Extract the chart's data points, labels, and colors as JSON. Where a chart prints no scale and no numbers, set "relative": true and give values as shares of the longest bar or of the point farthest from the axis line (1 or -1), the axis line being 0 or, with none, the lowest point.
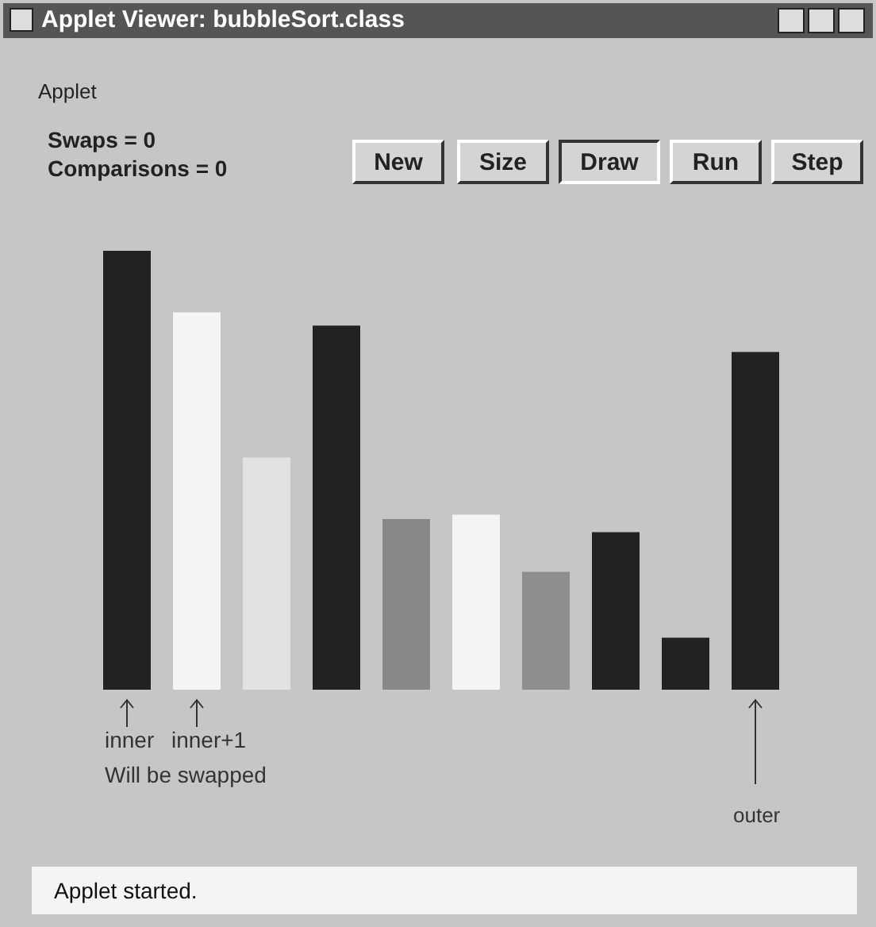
{
  "chart_data": {
    "type": "bar",
    "title": "Applet Viewer: bubbleSort.class",
    "relative": true,
    "categories": [
      null,
      null,
      null,
      null,
      null,
      null,
      null,
      null,
      null,
      null
    ],
    "values": [
      1,
      0.86,
      0.53,
      0.83,
      0.39,
      0.4,
      0.27,
      0.36,
      0.12,
      0.77
    ],
    "colors": [
      "#222222",
      "#f4f4f4",
      "#e2e2e2",
      "#222222",
      "#888888",
      "#f4f4f4",
      "#8e8e8e",
      "#222222",
      "#222222",
      "#222222"
    ],
    "annotations": [
      "Applet",
      "Swaps = 0",
      "Comparisons = 0",
      "New",
      "Size",
      "Draw",
      "Run",
      "Step",
      "inner",
      "inner+1",
      "Will be swapped",
      "outer",
      "Applet started."
    ]
  }
}
